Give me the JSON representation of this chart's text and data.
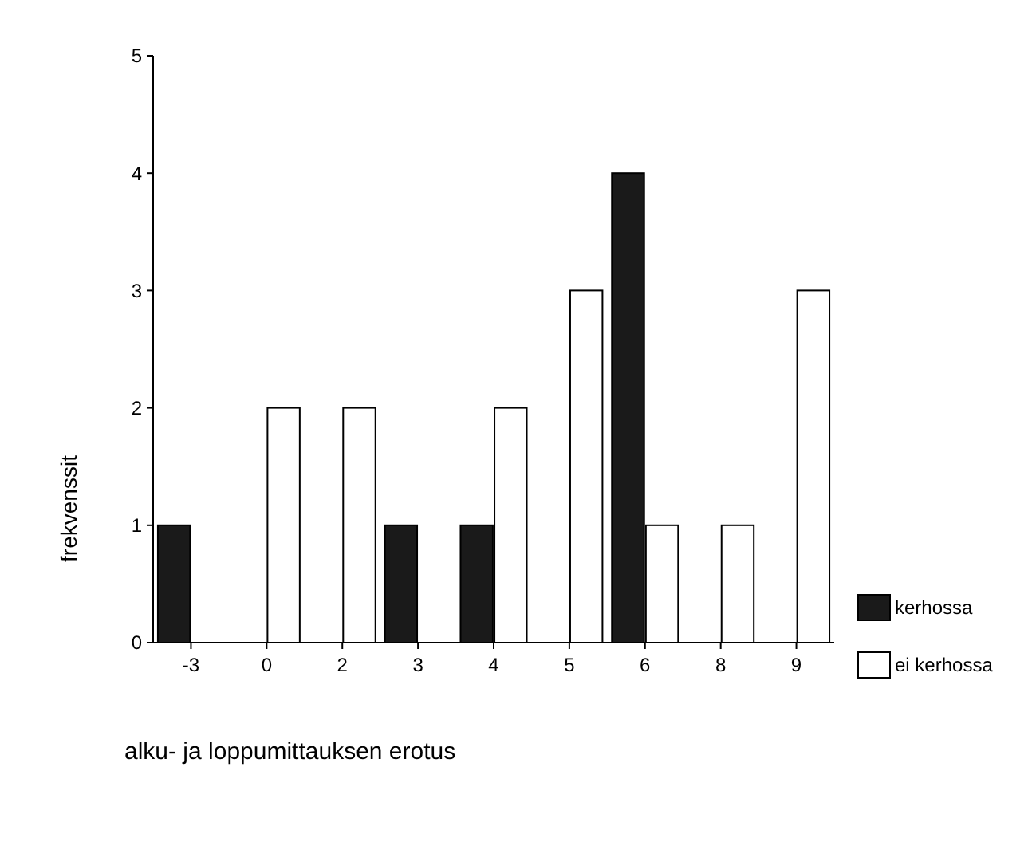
{
  "chart_data": {
    "type": "bar",
    "xlabel": "alku- ja loppumittauksen erotus",
    "ylabel": "frekvenssit",
    "categories": [
      "-3",
      "0",
      "2",
      "3",
      "4",
      "5",
      "6",
      "8",
      "9"
    ],
    "series": [
      {
        "name": "kerhossa",
        "color": "#1a1a1a",
        "values": [
          1,
          0,
          0,
          1,
          1,
          0,
          4,
          0,
          0
        ]
      },
      {
        "name": "ei kerhossa",
        "color": "#ffffff",
        "values": [
          0,
          2,
          2,
          0,
          2,
          3,
          1,
          1,
          3
        ]
      }
    ],
    "ylim": [
      0,
      5
    ],
    "yticks": [
      0,
      1,
      2,
      3,
      4,
      5
    ],
    "grid": false,
    "legend": "right"
  }
}
